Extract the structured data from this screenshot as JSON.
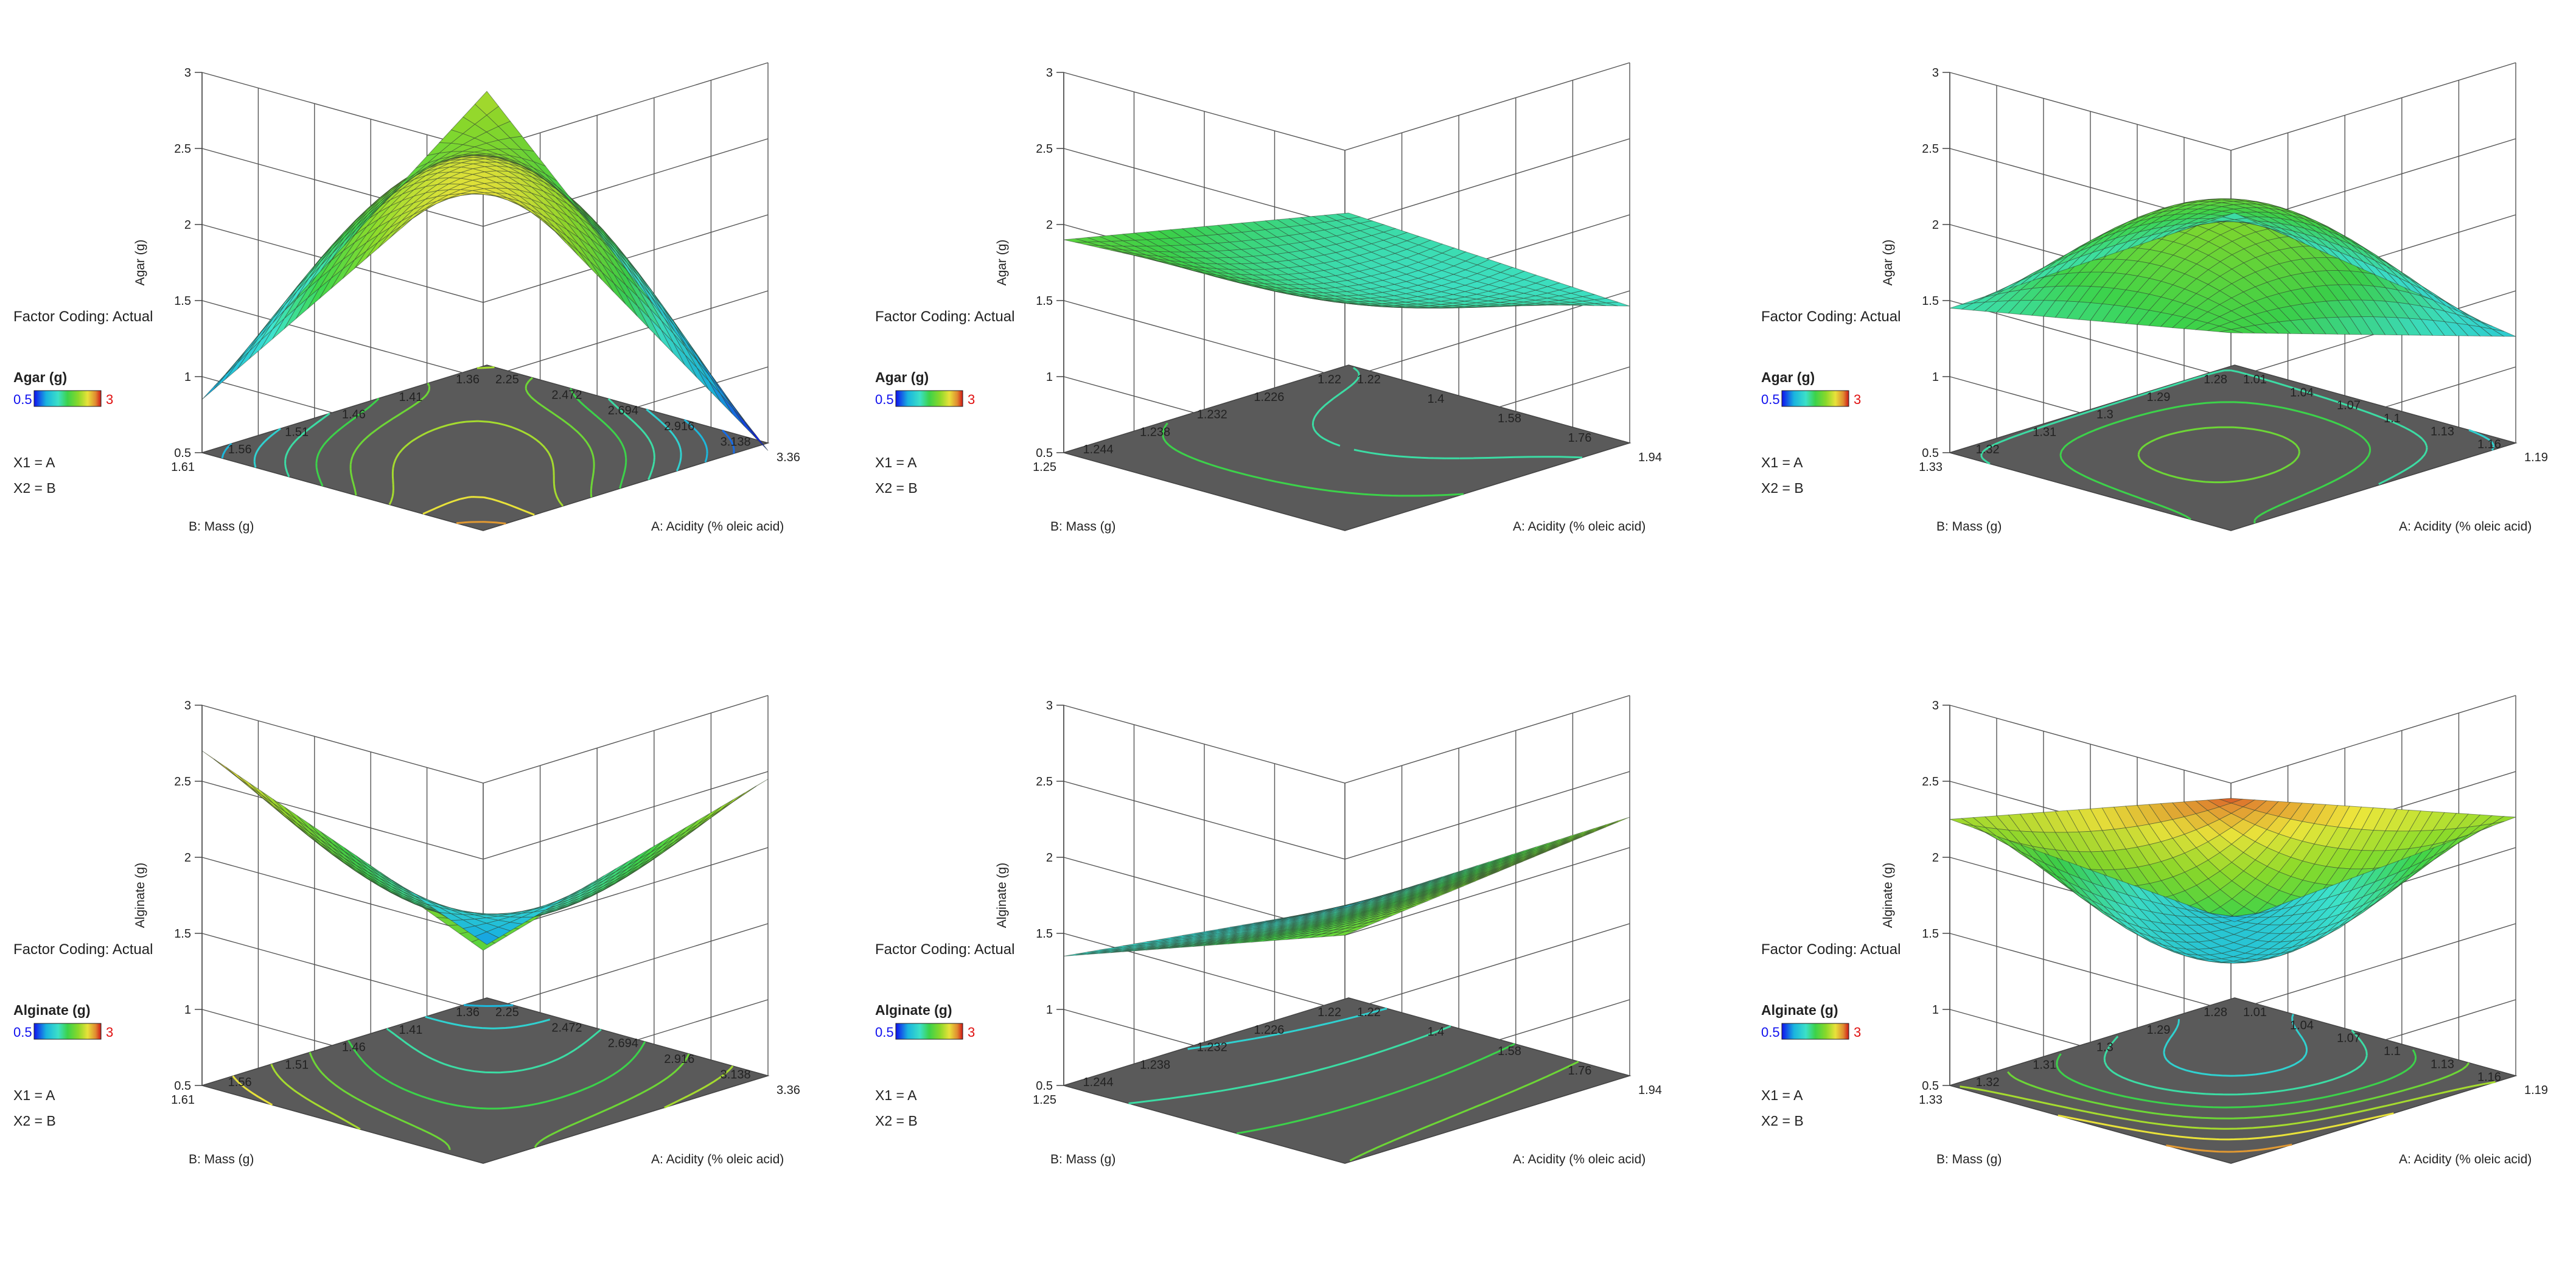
{
  "labels": {
    "factor_coding": "Factor Coding: Actual",
    "x1": "X1 = A",
    "x2": "X2 = B"
  },
  "colors": {
    "axis": "#444444",
    "grid": "#555555",
    "floor": "#5a5a5a",
    "legend_low": "#1010ee",
    "legend_high": "#e01010",
    "mesh": "#2f3f2f"
  },
  "chart_data": [
    {
      "type": "surface3d",
      "panel": "top-left",
      "zlabel": "Agar (g)",
      "legend_title": "Agar (g)",
      "legend_min": "0.5",
      "legend_max": "3",
      "xlabel": "A: Acidity (% oleic acid)",
      "ylabel": "B: Mass (g)",
      "xticks": [
        "2.25",
        "2.472",
        "2.694",
        "2.916",
        "3.138",
        "3.36"
      ],
      "yticks": [
        "1.36",
        "1.41",
        "1.46",
        "1.51",
        "1.56",
        "1.61"
      ],
      "zticks": [
        "0.5",
        "1",
        "1.5",
        "2",
        "2.5",
        "3"
      ],
      "zlim": [
        0.5,
        3
      ],
      "corners": {
        "a_low_b_low": 2.3,
        "a_high_b_low": 0.45,
        "a_low_b_high": 0.85,
        "a_high_b_high": 2.95
      },
      "center": 2.4
    },
    {
      "type": "surface3d",
      "panel": "top-middle",
      "zlabel": "Agar (g)",
      "legend_title": "Agar (g)",
      "legend_min": "0.5",
      "legend_max": "3",
      "xlabel": "A: Acidity (% oleic acid)",
      "ylabel": "B: Mass (g)",
      "xticks": [
        "1.22",
        "1.4",
        "1.58",
        "1.76",
        "1.94"
      ],
      "yticks": [
        "1.22",
        "1.226",
        "1.232",
        "1.238",
        "1.244",
        "1.25"
      ],
      "zticks": [
        "0.5",
        "1",
        "1.5",
        "2",
        "2.5",
        "3"
      ],
      "zlim": [
        0.5,
        3
      ],
      "corners": {
        "a_low_b_low": 1.5,
        "a_high_b_low": 1.4,
        "a_low_b_high": 1.9,
        "a_high_b_high": 2.0
      },
      "center": 1.5
    },
    {
      "type": "surface3d",
      "panel": "top-right",
      "zlabel": "Agar (g)",
      "legend_title": "Agar (g)",
      "legend_min": "0.5",
      "legend_max": "3",
      "xlabel": "A: Acidity (% oleic acid)",
      "ylabel": "B: Mass (g)",
      "xticks": [
        "1.01",
        "1.04",
        "1.07",
        "1.1",
        "1.13",
        "1.16",
        "1.19"
      ],
      "yticks": [
        "1.28",
        "1.29",
        "1.3",
        "1.31",
        "1.32",
        "1.33"
      ],
      "zticks": [
        "0.5",
        "1",
        "1.5",
        "2",
        "2.5",
        "3"
      ],
      "zlim": [
        0.5,
        3
      ],
      "corners": {
        "a_low_b_low": 1.5,
        "a_high_b_low": 1.2,
        "a_low_b_high": 1.45,
        "a_high_b_high": 1.8
      },
      "center": 2.1
    },
    {
      "type": "surface3d",
      "panel": "bottom-left",
      "zlabel": "Alginate (g)",
      "legend_title": "Alginate (g)",
      "legend_min": "0.5",
      "legend_max": "3",
      "xlabel": "A: Acidity (% oleic acid)",
      "ylabel": "B: Mass (g)",
      "xticks": [
        "2.25",
        "2.472",
        "2.694",
        "2.916",
        "3.138",
        "3.36"
      ],
      "yticks": [
        "1.36",
        "1.41",
        "1.46",
        "1.51",
        "1.56",
        "1.61"
      ],
      "zticks": [
        "0.5",
        "1",
        "1.5",
        "2",
        "2.5",
        "3"
      ],
      "zlim": [
        0.5,
        3
      ],
      "corners": {
        "a_low_b_low": 0.85,
        "a_high_b_low": 2.45,
        "a_low_b_high": 2.7,
        "a_high_b_high": 1.9
      },
      "center": 1.55
    },
    {
      "type": "surface3d",
      "panel": "bottom-middle",
      "zlabel": "Alginate (g)",
      "legend_title": "Alginate (g)",
      "legend_min": "0.5",
      "legend_max": "3",
      "xlabel": "A: Acidity (% oleic acid)",
      "ylabel": "B: Mass (g)",
      "xticks": [
        "1.22",
        "1.4",
        "1.58",
        "1.76",
        "1.94"
      ],
      "yticks": [
        "1.22",
        "1.226",
        "1.232",
        "1.238",
        "1.244",
        "1.25"
      ],
      "zticks": [
        "0.5",
        "1",
        "1.5",
        "2",
        "2.5",
        "3"
      ],
      "zlim": [
        0.5,
        3
      ],
      "corners": {
        "a_low_b_low": 1.1,
        "a_high_b_low": 2.2,
        "a_low_b_high": 1.35,
        "a_high_b_high": 2.0
      },
      "center": 1.6
    },
    {
      "type": "surface3d",
      "panel": "bottom-right",
      "zlabel": "Alginate (g)",
      "legend_title": "Alginate (g)",
      "legend_min": "0.5",
      "legend_max": "3",
      "xlabel": "A: Acidity (% oleic acid)",
      "ylabel": "B: Mass (g)",
      "xticks": [
        "1.01",
        "1.04",
        "1.07",
        "1.1",
        "1.13",
        "1.16",
        "1.19"
      ],
      "yticks": [
        "1.28",
        "1.29",
        "1.3",
        "1.31",
        "1.32",
        "1.33"
      ],
      "zticks": [
        "0.5",
        "1",
        "1.5",
        "2",
        "2.5",
        "3"
      ],
      "zlim": [
        0.5,
        3
      ],
      "corners": {
        "a_low_b_low": 1.0,
        "a_high_b_low": 2.2,
        "a_low_b_high": 2.25,
        "a_high_b_high": 2.9
      },
      "center": 1.3
    }
  ]
}
